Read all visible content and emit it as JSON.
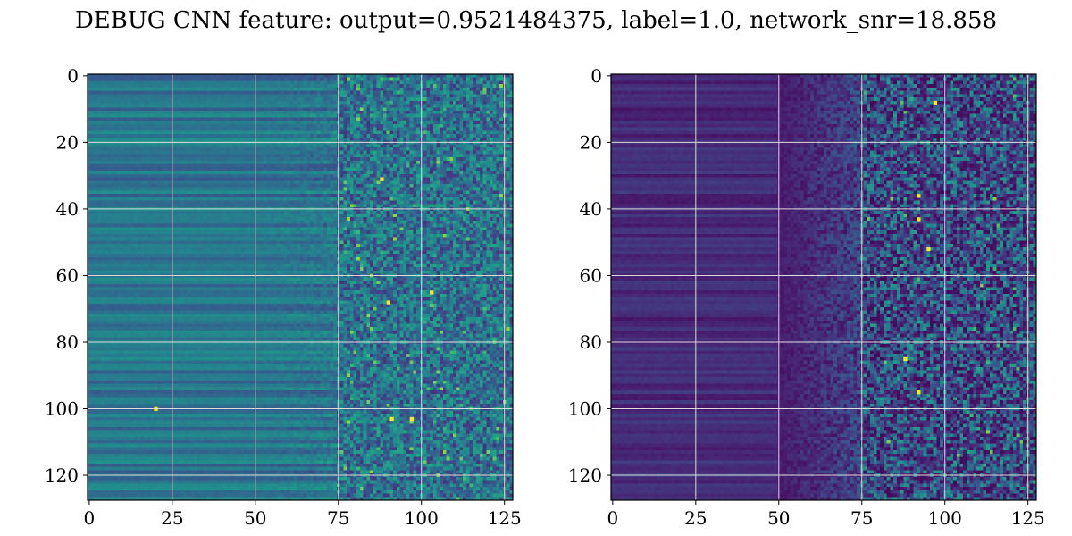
{
  "title": "DEBUG CNN feature: output=0.9521484375, label=1.0, network_snr=18.858",
  "chart_data": [
    {
      "type": "heatmap",
      "colormap": "viridis",
      "rows": 128,
      "cols": 128,
      "xlim": [
        0,
        127
      ],
      "ylim": [
        0,
        127
      ],
      "y_inverted": true,
      "grid": true,
      "x_ticks": [
        0,
        25,
        50,
        75,
        100,
        125
      ],
      "y_ticks": [
        0,
        20,
        40,
        60,
        80,
        100,
        120
      ],
      "x_tick_labels": [
        "0",
        "25",
        "50",
        "75",
        "100",
        "125"
      ],
      "y_tick_labels": [
        "0",
        "20",
        "40",
        "60",
        "80",
        "100",
        "120"
      ],
      "notable_bright_pixels": [
        {
          "row": 65,
          "col": 103
        },
        {
          "row": 68,
          "col": 90
        },
        {
          "row": 103,
          "col": 91
        },
        {
          "row": 103,
          "col": 97
        },
        {
          "row": 31,
          "col": 88
        },
        {
          "row": 100,
          "col": 20
        }
      ]
    },
    {
      "type": "heatmap",
      "colormap": "viridis",
      "rows": 128,
      "cols": 128,
      "xlim": [
        0,
        127
      ],
      "ylim": [
        0,
        127
      ],
      "y_inverted": true,
      "grid": true,
      "x_ticks": [
        0,
        25,
        50,
        75,
        100,
        125
      ],
      "y_ticks": [
        0,
        20,
        40,
        60,
        80,
        100,
        120
      ],
      "x_tick_labels": [
        "0",
        "25",
        "50",
        "75",
        "100",
        "125"
      ],
      "y_tick_labels": [
        "0",
        "20",
        "40",
        "60",
        "80",
        "100",
        "120"
      ],
      "notable_bright_pixels": [
        {
          "row": 43,
          "col": 92
        },
        {
          "row": 85,
          "col": 88
        },
        {
          "row": 95,
          "col": 92
        },
        {
          "row": 36,
          "col": 92
        },
        {
          "row": 52,
          "col": 95
        },
        {
          "row": 8,
          "col": 97
        }
      ]
    }
  ]
}
